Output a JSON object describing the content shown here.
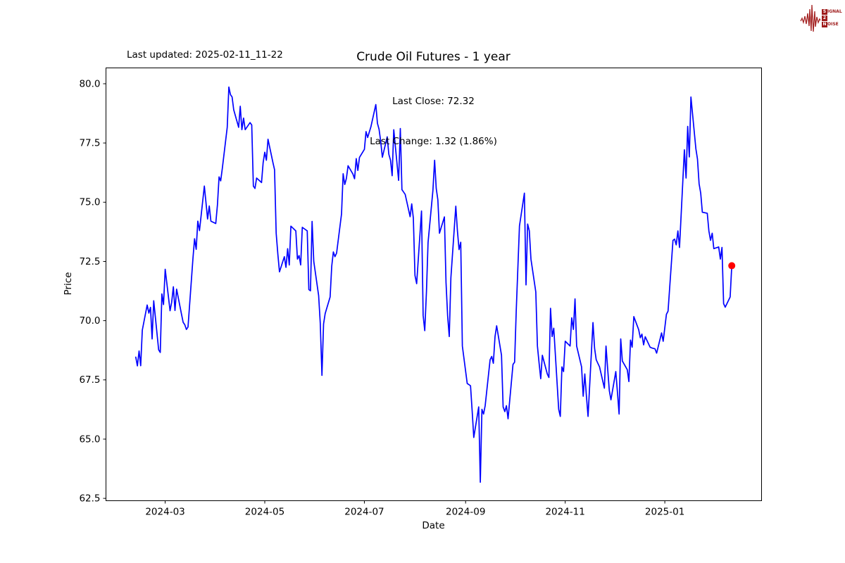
{
  "header": {
    "last_updated": "Last updated: 2025-02-11_11-22"
  },
  "logo": {
    "color": "#9e1b1b",
    "rows": [
      {
        "initial": "S",
        "rest": "IGNAL"
      },
      {
        "initial": "2",
        "rest": ""
      },
      {
        "initial": "N",
        "rest": "OISE"
      }
    ]
  },
  "chart_data": {
    "type": "line",
    "title": "Crude Oil Futures - 1 year",
    "xlabel": "Date",
    "ylabel": "Price",
    "annotations": {
      "last_close": "Last Close: 72.32",
      "last_change": "Last Change: 1.32 (1.86%)"
    },
    "last_close": 72.32,
    "last_change": 1.32,
    "last_change_pct": 1.86,
    "line_color": "#0000ff",
    "marker_color": "#ff0000",
    "grid": false,
    "legend": "none",
    "ylim": [
      62.4,
      80.668
    ],
    "yticks": [
      62.5,
      65.0,
      67.5,
      70.0,
      72.5,
      75.0,
      77.5,
      80.0
    ],
    "xticks": [
      {
        "date": "2024-03-01",
        "label": "2024-03"
      },
      {
        "date": "2024-05-01",
        "label": "2024-05"
      },
      {
        "date": "2024-07-01",
        "label": "2024-07"
      },
      {
        "date": "2024-09-01",
        "label": "2024-09"
      },
      {
        "date": "2024-11-01",
        "label": "2024-11"
      },
      {
        "date": "2025-01-01",
        "label": "2025-01"
      }
    ],
    "series": [
      [
        "2024-02-12",
        68.46
      ],
      [
        "2024-02-13",
        68.09
      ],
      [
        "2024-02-14",
        68.72
      ],
      [
        "2024-02-15",
        68.1
      ],
      [
        "2024-02-16",
        69.6
      ],
      [
        "2024-02-19",
        70.66
      ],
      [
        "2024-02-20",
        70.32
      ],
      [
        "2024-02-21",
        70.56
      ],
      [
        "2024-02-22",
        69.23
      ],
      [
        "2024-02-23",
        70.84
      ],
      [
        "2024-02-26",
        68.77
      ],
      [
        "2024-02-27",
        68.66
      ],
      [
        "2024-02-28",
        71.13
      ],
      [
        "2024-02-29",
        70.68
      ],
      [
        "2024-03-01",
        72.17
      ],
      [
        "2024-03-04",
        70.42
      ],
      [
        "2024-03-05",
        70.78
      ],
      [
        "2024-03-06",
        71.43
      ],
      [
        "2024-03-07",
        70.43
      ],
      [
        "2024-03-08",
        71.33
      ],
      [
        "2024-03-11",
        70.28
      ],
      [
        "2024-03-12",
        69.93
      ],
      [
        "2024-03-13",
        69.83
      ],
      [
        "2024-03-14",
        69.63
      ],
      [
        "2024-03-15",
        69.73
      ],
      [
        "2024-03-18",
        72.62
      ],
      [
        "2024-03-19",
        73.46
      ],
      [
        "2024-03-20",
        73.01
      ],
      [
        "2024-03-21",
        74.2
      ],
      [
        "2024-03-22",
        73.8
      ],
      [
        "2024-03-25",
        75.68
      ],
      [
        "2024-03-26",
        74.99
      ],
      [
        "2024-03-27",
        74.29
      ],
      [
        "2024-03-28",
        74.84
      ],
      [
        "2024-03-29",
        74.2
      ],
      [
        "2024-04-01",
        74.1
      ],
      [
        "2024-04-02",
        74.89
      ],
      [
        "2024-04-03",
        76.07
      ],
      [
        "2024-04-04",
        75.9
      ],
      [
        "2024-04-05",
        76.42
      ],
      [
        "2024-04-08",
        78.16
      ],
      [
        "2024-04-09",
        79.86
      ],
      [
        "2024-04-10",
        79.54
      ],
      [
        "2024-04-11",
        79.44
      ],
      [
        "2024-04-12",
        78.9
      ],
      [
        "2024-04-15",
        78.16
      ],
      [
        "2024-04-16",
        79.05
      ],
      [
        "2024-04-17",
        78.06
      ],
      [
        "2024-04-18",
        78.55
      ],
      [
        "2024-04-19",
        78.06
      ],
      [
        "2024-04-22",
        78.36
      ],
      [
        "2024-04-23",
        78.26
      ],
      [
        "2024-04-24",
        75.68
      ],
      [
        "2024-04-25",
        75.58
      ],
      [
        "2024-04-26",
        76.02
      ],
      [
        "2024-04-29",
        75.83
      ],
      [
        "2024-04-30",
        76.67
      ],
      [
        "2024-05-01",
        77.11
      ],
      [
        "2024-05-02",
        76.77
      ],
      [
        "2024-05-03",
        77.66
      ],
      [
        "2024-05-06",
        76.67
      ],
      [
        "2024-05-07",
        76.37
      ],
      [
        "2024-05-08",
        73.69
      ],
      [
        "2024-05-09",
        72.8
      ],
      [
        "2024-05-10",
        72.06
      ],
      [
        "2024-05-13",
        72.7
      ],
      [
        "2024-05-14",
        72.25
      ],
      [
        "2024-05-15",
        73.04
      ],
      [
        "2024-05-16",
        72.35
      ],
      [
        "2024-05-17",
        73.99
      ],
      [
        "2024-05-20",
        73.79
      ],
      [
        "2024-05-21",
        72.6
      ],
      [
        "2024-05-22",
        72.75
      ],
      [
        "2024-05-23",
        72.35
      ],
      [
        "2024-05-24",
        73.94
      ],
      [
        "2024-05-27",
        73.79
      ],
      [
        "2024-05-28",
        71.31
      ],
      [
        "2024-05-29",
        71.26
      ],
      [
        "2024-05-30",
        74.19
      ],
      [
        "2024-05-31",
        72.5
      ],
      [
        "2024-06-03",
        71.06
      ],
      [
        "2024-06-04",
        69.9
      ],
      [
        "2024-06-05",
        67.69
      ],
      [
        "2024-06-06",
        69.86
      ],
      [
        "2024-06-07",
        70.3
      ],
      [
        "2024-06-10",
        71.0
      ],
      [
        "2024-06-11",
        72.3
      ],
      [
        "2024-06-12",
        72.9
      ],
      [
        "2024-06-13",
        72.7
      ],
      [
        "2024-06-14",
        72.85
      ],
      [
        "2024-06-17",
        74.5
      ],
      [
        "2024-06-18",
        76.2
      ],
      [
        "2024-06-19",
        75.75
      ],
      [
        "2024-06-20",
        76.0
      ],
      [
        "2024-06-21",
        76.54
      ],
      [
        "2024-06-24",
        76.19
      ],
      [
        "2024-06-25",
        75.99
      ],
      [
        "2024-06-26",
        76.84
      ],
      [
        "2024-06-27",
        76.34
      ],
      [
        "2024-06-28",
        76.89
      ],
      [
        "2024-07-01",
        77.23
      ],
      [
        "2024-07-02",
        77.98
      ],
      [
        "2024-07-03",
        77.73
      ],
      [
        "2024-07-05",
        78.18
      ],
      [
        "2024-07-08",
        79.12
      ],
      [
        "2024-07-09",
        78.33
      ],
      [
        "2024-07-10",
        78.08
      ],
      [
        "2024-07-11",
        77.58
      ],
      [
        "2024-07-12",
        76.9
      ],
      [
        "2024-07-15",
        77.76
      ],
      [
        "2024-07-16",
        77.02
      ],
      [
        "2024-07-17",
        76.77
      ],
      [
        "2024-07-18",
        76.12
      ],
      [
        "2024-07-19",
        78.06
      ],
      [
        "2024-07-22",
        75.92
      ],
      [
        "2024-07-23",
        78.11
      ],
      [
        "2024-07-24",
        75.53
      ],
      [
        "2024-07-25",
        75.43
      ],
      [
        "2024-07-26",
        75.33
      ],
      [
        "2024-07-29",
        74.39
      ],
      [
        "2024-07-30",
        74.93
      ],
      [
        "2024-07-31",
        74.33
      ],
      [
        "2024-08-01",
        71.91
      ],
      [
        "2024-08-02",
        71.56
      ],
      [
        "2024-08-05",
        74.63
      ],
      [
        "2024-08-06",
        70.22
      ],
      [
        "2024-08-07",
        69.58
      ],
      [
        "2024-08-08",
        71.21
      ],
      [
        "2024-08-09",
        73.3
      ],
      [
        "2024-08-12",
        75.5
      ],
      [
        "2024-08-13",
        76.77
      ],
      [
        "2024-08-14",
        75.58
      ],
      [
        "2024-08-15",
        75.1
      ],
      [
        "2024-08-16",
        73.69
      ],
      [
        "2024-08-19",
        74.38
      ],
      [
        "2024-08-20",
        71.61
      ],
      [
        "2024-08-21",
        70.2
      ],
      [
        "2024-08-22",
        69.33
      ],
      [
        "2024-08-23",
        71.8
      ],
      [
        "2024-08-26",
        74.83
      ],
      [
        "2024-08-27",
        73.79
      ],
      [
        "2024-08-28",
        73.0
      ],
      [
        "2024-08-29",
        73.31
      ],
      [
        "2024-08-30",
        68.93
      ],
      [
        "2024-09-02",
        67.35
      ],
      [
        "2024-09-03",
        67.3
      ],
      [
        "2024-09-04",
        67.25
      ],
      [
        "2024-09-05",
        66.2
      ],
      [
        "2024-09-06",
        65.07
      ],
      [
        "2024-09-09",
        66.36
      ],
      [
        "2024-09-10",
        63.18
      ],
      [
        "2024-09-11",
        66.26
      ],
      [
        "2024-09-12",
        66.06
      ],
      [
        "2024-09-13",
        66.41
      ],
      [
        "2024-09-16",
        68.35
      ],
      [
        "2024-09-17",
        68.49
      ],
      [
        "2024-09-18",
        68.2
      ],
      [
        "2024-09-19",
        69.33
      ],
      [
        "2024-09-20",
        69.78
      ],
      [
        "2024-09-23",
        68.54
      ],
      [
        "2024-09-24",
        66.36
      ],
      [
        "2024-09-25",
        66.16
      ],
      [
        "2024-09-26",
        66.41
      ],
      [
        "2024-09-27",
        65.86
      ],
      [
        "2024-09-30",
        68.15
      ],
      [
        "2024-10-01",
        68.25
      ],
      [
        "2024-10-02",
        70.4
      ],
      [
        "2024-10-03",
        72.2
      ],
      [
        "2024-10-04",
        74.0
      ],
      [
        "2024-10-07",
        75.38
      ],
      [
        "2024-10-08",
        71.51
      ],
      [
        "2024-10-09",
        74.08
      ],
      [
        "2024-10-10",
        73.79
      ],
      [
        "2024-10-11",
        72.6
      ],
      [
        "2024-10-14",
        71.21
      ],
      [
        "2024-10-15",
        68.93
      ],
      [
        "2024-10-16",
        68.2
      ],
      [
        "2024-10-17",
        67.55
      ],
      [
        "2024-10-18",
        68.54
      ],
      [
        "2024-10-21",
        67.75
      ],
      [
        "2024-10-22",
        67.6
      ],
      [
        "2024-10-23",
        70.52
      ],
      [
        "2024-10-24",
        69.33
      ],
      [
        "2024-10-25",
        69.68
      ],
      [
        "2024-10-28",
        66.26
      ],
      [
        "2024-10-29",
        65.96
      ],
      [
        "2024-10-30",
        68.05
      ],
      [
        "2024-10-31",
        67.85
      ],
      [
        "2024-11-01",
        69.13
      ],
      [
        "2024-11-04",
        68.93
      ],
      [
        "2024-11-05",
        70.12
      ],
      [
        "2024-11-06",
        69.63
      ],
      [
        "2024-11-07",
        70.92
      ],
      [
        "2024-11-08",
        68.93
      ],
      [
        "2024-11-11",
        68.05
      ],
      [
        "2024-11-12",
        66.81
      ],
      [
        "2024-11-13",
        67.75
      ],
      [
        "2024-11-14",
        66.81
      ],
      [
        "2024-11-15",
        65.96
      ],
      [
        "2024-11-18",
        69.92
      ],
      [
        "2024-11-19",
        68.83
      ],
      [
        "2024-11-20",
        68.35
      ],
      [
        "2024-11-21",
        68.2
      ],
      [
        "2024-11-22",
        68.05
      ],
      [
        "2024-11-25",
        67.15
      ],
      [
        "2024-11-26",
        68.93
      ],
      [
        "2024-11-27",
        67.95
      ],
      [
        "2024-11-28",
        67.05
      ],
      [
        "2024-11-29",
        66.66
      ],
      [
        "2024-12-02",
        67.85
      ],
      [
        "2024-12-03",
        66.96
      ],
      [
        "2024-12-04",
        66.06
      ],
      [
        "2024-12-05",
        69.23
      ],
      [
        "2024-12-06",
        68.3
      ],
      [
        "2024-12-09",
        67.93
      ],
      [
        "2024-12-10",
        67.43
      ],
      [
        "2024-12-11",
        69.18
      ],
      [
        "2024-12-12",
        68.88
      ],
      [
        "2024-12-13",
        70.17
      ],
      [
        "2024-12-16",
        69.62
      ],
      [
        "2024-12-17",
        69.28
      ],
      [
        "2024-12-18",
        69.43
      ],
      [
        "2024-12-19",
        68.98
      ],
      [
        "2024-12-20",
        69.32
      ],
      [
        "2024-12-23",
        68.88
      ],
      [
        "2024-12-24",
        68.85
      ],
      [
        "2024-12-26",
        68.81
      ],
      [
        "2024-12-27",
        68.63
      ],
      [
        "2024-12-30",
        69.48
      ],
      [
        "2024-12-31",
        69.13
      ],
      [
        "2025-01-02",
        70.27
      ],
      [
        "2025-01-03",
        70.4
      ],
      [
        "2025-01-06",
        73.39
      ],
      [
        "2025-01-07",
        73.44
      ],
      [
        "2025-01-08",
        73.2
      ],
      [
        "2025-01-09",
        73.79
      ],
      [
        "2025-01-10",
        73.09
      ],
      [
        "2025-01-13",
        77.21
      ],
      [
        "2025-01-14",
        76.02
      ],
      [
        "2025-01-15",
        78.2
      ],
      [
        "2025-01-16",
        76.91
      ],
      [
        "2025-01-17",
        79.44
      ],
      [
        "2025-01-20",
        77.26
      ],
      [
        "2025-01-21",
        76.82
      ],
      [
        "2025-01-22",
        75.78
      ],
      [
        "2025-01-23",
        75.38
      ],
      [
        "2025-01-24",
        74.58
      ],
      [
        "2025-01-27",
        74.53
      ],
      [
        "2025-01-28",
        73.79
      ],
      [
        "2025-01-29",
        73.39
      ],
      [
        "2025-01-30",
        73.69
      ],
      [
        "2025-01-31",
        73.04
      ],
      [
        "2025-02-03",
        73.11
      ],
      [
        "2025-02-04",
        72.6
      ],
      [
        "2025-02-05",
        73.09
      ],
      [
        "2025-02-06",
        70.72
      ],
      [
        "2025-02-07",
        70.57
      ],
      [
        "2025-02-10",
        71.0
      ],
      [
        "2025-02-11",
        72.32
      ]
    ]
  }
}
